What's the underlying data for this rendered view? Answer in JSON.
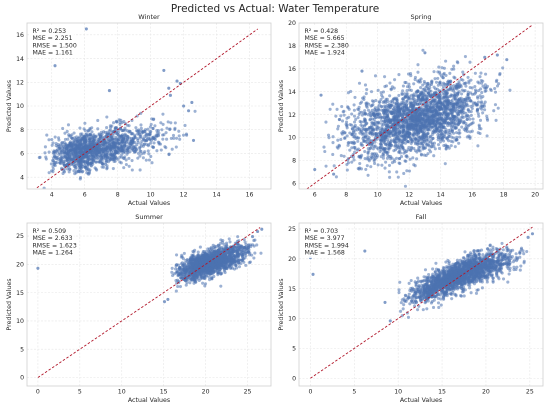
{
  "figure": {
    "title": "Predicted vs Actual: Water Temperature"
  },
  "chart_data": [
    {
      "type": "scatter",
      "title": "Winter",
      "xlabel": "Actual Values",
      "ylabel": "Predicted Values",
      "xlim": [
        2.5,
        17.3
      ],
      "ylim": [
        3.0,
        17.0
      ],
      "xticks": [
        4,
        6,
        8,
        10,
        12,
        14,
        16
      ],
      "yticks": [
        4,
        6,
        8,
        10,
        12,
        14,
        16
      ],
      "grid": true,
      "reference_line": "y = x",
      "stats": [
        "R² = 0.253",
        "MSE = 2.251",
        "RMSE = 1.500",
        "MAE = 1.161"
      ],
      "cloud": {
        "x_range": [
          3.0,
          12.8
        ],
        "x_peak": 6.5,
        "y_at": [
          [
            3.0,
            5.8
          ],
          [
            6.0,
            6.2
          ],
          [
            10.0,
            7.2
          ],
          [
            12.8,
            7.9
          ]
        ],
        "spread": 0.8,
        "count": 1400
      },
      "points": [
        [
          6.1,
          16.5
        ],
        [
          4.2,
          13.4
        ],
        [
          7.5,
          11.3
        ],
        [
          11.1,
          11.5
        ],
        [
          11.2,
          10.9
        ],
        [
          11.8,
          11.9
        ],
        [
          10.8,
          13.0
        ],
        [
          12.5,
          10.3
        ],
        [
          12.0,
          10.0
        ],
        [
          12.6,
          7.1
        ],
        [
          12.3,
          9.6
        ],
        [
          11.6,
          12.1
        ]
      ]
    },
    {
      "type": "scatter",
      "title": "Spring",
      "xlabel": "Actual Values",
      "ylabel": "Predicted Values",
      "xlim": [
        5.0,
        20.5
      ],
      "ylim": [
        5.5,
        20.0
      ],
      "xticks": [
        6,
        8,
        10,
        12,
        14,
        16,
        18,
        20
      ],
      "yticks": [
        6,
        8,
        10,
        12,
        14,
        16,
        18,
        20
      ],
      "grid": true,
      "reference_line": "y = x",
      "stats": [
        "R² = 0.428",
        "MSE = 5.665",
        "RMSE = 2.380",
        "MAE = 1.924"
      ],
      "cloud": {
        "x_range": [
          5.8,
          18.6
        ],
        "x_peak": 12.5,
        "y_at": [
          [
            5.8,
            9.5
          ],
          [
            10.0,
            10.7
          ],
          [
            14.0,
            12.2
          ],
          [
            18.6,
            13.8
          ]
        ],
        "spread": 1.5,
        "count": 2400
      },
      "points": [
        [
          6.0,
          7.2
        ],
        [
          7.2,
          6.8
        ],
        [
          18.2,
          16.8
        ],
        [
          17.6,
          17.2
        ],
        [
          16.8,
          17.0
        ],
        [
          6.4,
          13.7
        ],
        [
          9.0,
          15.8
        ],
        [
          13.0,
          17.4
        ]
      ]
    },
    {
      "type": "scatter",
      "title": "Summer",
      "xlabel": "Actual Values",
      "ylabel": "Predicted Values",
      "xlim": [
        -1.3,
        27.8
      ],
      "ylim": [
        -1.5,
        27.3
      ],
      "xticks": [
        0,
        5,
        10,
        15,
        20,
        25
      ],
      "yticks": [
        0,
        5,
        10,
        15,
        20,
        25
      ],
      "grid": true,
      "reference_line": "y = x",
      "stats": [
        "R² = 0.509",
        "MSE = 2.633",
        "RMSE = 1.623",
        "MAE = 1.264"
      ],
      "cloud": {
        "x_range": [
          15.3,
          26.8
        ],
        "x_peak": 20.5,
        "y_at": [
          [
            15.3,
            17.8
          ],
          [
            20.0,
            20.0
          ],
          [
            26.8,
            23.0
          ]
        ],
        "spread": 1.1,
        "count": 1700
      },
      "points": [
        [
          0.0,
          19.3
        ],
        [
          15.1,
          13.4
        ],
        [
          15.5,
          13.8
        ],
        [
          26.7,
          26.2
        ],
        [
          26.2,
          25.8
        ],
        [
          25.6,
          24.9
        ]
      ]
    },
    {
      "type": "scatter",
      "title": "Fall",
      "xlabel": "Actual Values",
      "ylabel": "Predicted Values",
      "xlim": [
        -1.3,
        26.5
      ],
      "ylim": [
        -1.3,
        26.0
      ],
      "xticks": [
        0,
        5,
        10,
        15,
        20,
        25
      ],
      "yticks": [
        0,
        5,
        10,
        15,
        20,
        25
      ],
      "grid": true,
      "reference_line": "y = x",
      "stats": [
        "R² = 0.703",
        "MSE = 3.977",
        "RMSE = 1.994",
        "MAE = 1.568"
      ],
      "cloud": {
        "x_range": [
          9.0,
          25.5
        ],
        "x_peak": 17.0,
        "y_at": [
          [
            9.0,
            12.5
          ],
          [
            12.0,
            14.0
          ],
          [
            18.0,
            18.0
          ],
          [
            25.5,
            21.0
          ]
        ],
        "spread": 1.25,
        "count": 1900
      },
      "points": [
        [
          0.0,
          20.2
        ],
        [
          0.3,
          17.4
        ],
        [
          6.2,
          21.3
        ],
        [
          8.5,
          12.7
        ],
        [
          9.1,
          9.6
        ],
        [
          25.3,
          24.2
        ],
        [
          24.8,
          23.6
        ]
      ]
    }
  ]
}
